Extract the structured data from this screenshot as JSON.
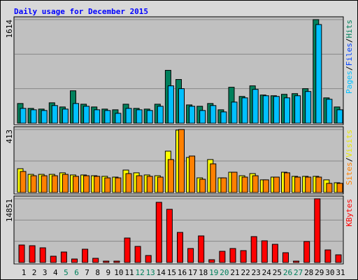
{
  "chart_data": [
    {
      "type": "bar",
      "title": "Daily usage for December 2015",
      "ylim": [
        0,
        1614
      ],
      "yticks": [
        1614
      ],
      "grid_divisions": 3,
      "series": [
        {
          "color": "#00805c",
          "values": [
            307,
            231,
            220,
            318,
            253,
            505,
            296,
            253,
            220,
            209,
            296,
            231,
            220,
            296,
            824,
            681,
            285,
            264,
            307,
            209,
            560,
            417,
            582,
            439,
            428,
            450,
            461,
            538,
            1614,
            395,
            253
          ]
        },
        {
          "color": "#00c0ff",
          "values": [
            231,
            209,
            198,
            275,
            220,
            307,
            264,
            209,
            198,
            154,
            231,
            209,
            198,
            264,
            582,
            538,
            264,
            198,
            275,
            176,
            329,
            395,
            527,
            428,
            417,
            395,
            428,
            494,
            1537,
            373,
            209
          ]
        }
      ],
      "legend": [
        {
          "name": "Pages",
          "color": "#00c0ff"
        },
        {
          "name": "Files",
          "color": "#0040ff"
        },
        {
          "name": "Hits",
          "color": "#00805c"
        }
      ],
      "legend_separator": "/"
    },
    {
      "type": "bar",
      "ylim": [
        0,
        413
      ],
      "yticks": [
        413
      ],
      "grid_divisions": 2,
      "series": [
        {
          "color": "#ffff00",
          "values": [
            156,
            119,
            119,
            119,
            129,
            115,
            115,
            110,
            106,
            101,
            147,
            129,
            115,
            110,
            271,
            409,
            230,
            96,
            216,
            96,
            133,
            110,
            124,
            83,
            101,
            133,
            106,
            106,
            106,
            83,
            64
          ]
        },
        {
          "color": "#ff8000",
          "values": [
            138,
            110,
            110,
            110,
            119,
            106,
            110,
            106,
            96,
            96,
            124,
            110,
            106,
            101,
            216,
            413,
            239,
            87,
            188,
            96,
            133,
            101,
            110,
            83,
            101,
            129,
            101,
            101,
            101,
            60,
            60
          ]
        }
      ],
      "legend": [
        {
          "name": "Sites",
          "color": "#ff8000"
        },
        {
          "name": "Visits",
          "color": "#e8e800"
        }
      ],
      "legend_separator": "/"
    },
    {
      "type": "bar",
      "ylim": [
        0,
        14851
      ],
      "yticks": [
        14851
      ],
      "grid_divisions": 3,
      "series": [
        {
          "color": "#ff0000",
          "values": [
            4080,
            3916,
            3427,
            1468,
            2448,
            816,
            3101,
            979,
            326,
            326,
            5712,
            3753,
            1632,
            14035,
            12403,
            7017,
            3264,
            6201,
            653,
            2611,
            3264,
            2774,
            6038,
            5059,
            4243,
            2285,
            326,
            4896,
            14851,
            2937,
            1795
          ]
        }
      ],
      "legend": [
        {
          "name": "KBytes",
          "color": "#ff0000"
        }
      ],
      "categories": [
        "1",
        "2",
        "3",
        "4",
        "5",
        "6",
        "7",
        "8",
        "9",
        "10",
        "11",
        "12",
        "13",
        "14",
        "15",
        "16",
        "17",
        "18",
        "19",
        "20",
        "21",
        "22",
        "23",
        "24",
        "25",
        "26",
        "27",
        "28",
        "29",
        "30",
        "31"
      ],
      "highlight_indices": [
        4,
        5,
        11,
        12,
        18,
        19,
        25,
        26
      ],
      "highlight_color": "#00805c"
    }
  ]
}
